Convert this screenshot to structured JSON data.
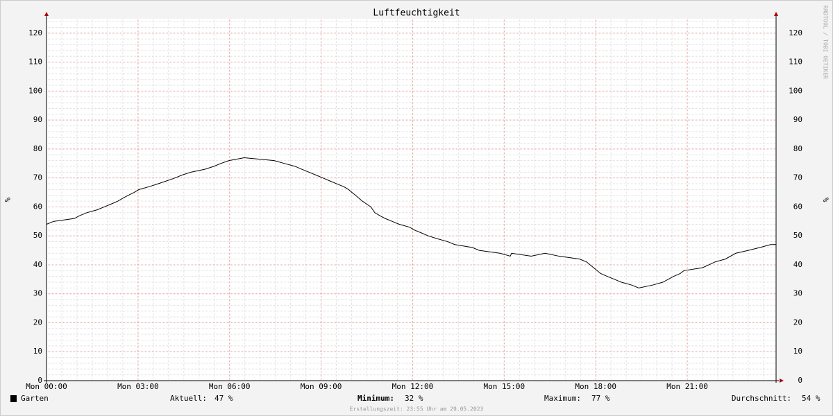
{
  "chart_data": {
    "type": "line",
    "title": "Luftfeuchtigkeit",
    "ylabel": "%",
    "watermark": "RRDTOOL / TOBI OETIKER",
    "x": [
      0,
      0.23,
      0.91,
      1.09,
      1.32,
      1.66,
      1.89,
      2.12,
      2.34,
      2.5,
      2.68,
      2.87,
      3.03,
      3.37,
      3.66,
      3.94,
      4.21,
      4.44,
      4.73,
      5.19,
      5.48,
      5.71,
      5.98,
      6.48,
      7.46,
      7.8,
      8.15,
      8.37,
      8.6,
      8.83,
      9.06,
      9.28,
      9.51,
      9.74,
      9.9,
      10.01,
      10.13,
      10.24,
      10.35,
      10.49,
      10.63,
      10.76,
      10.92,
      11.1,
      11.33,
      11.56,
      11.9,
      12.06,
      12.29,
      12.51,
      12.81,
      13.15,
      13.38,
      13.95,
      14.18,
      14.86,
      15.2,
      15.24,
      15.88,
      16.34,
      16.79,
      17.47,
      17.7,
      17.93,
      18.16,
      18.38,
      18.61,
      18.84,
      19.18,
      19.41,
      19.86,
      20.2,
      20.55,
      20.77,
      20.89,
      21.5,
      21.91,
      22.25,
      22.59,
      23.0,
      23.39,
      23.73,
      23.91
    ],
    "series": [
      {
        "name": "Garten",
        "color": "#000000",
        "values": [
          54,
          55,
          56,
          57,
          58,
          59,
          60,
          61,
          62,
          63,
          64,
          65,
          66,
          67,
          68,
          69,
          70,
          71,
          72,
          73,
          74,
          75,
          76,
          77,
          76,
          75,
          74,
          73,
          72,
          71,
          70,
          69,
          68,
          67,
          66,
          65,
          64,
          63,
          62,
          61,
          60,
          58,
          57,
          56,
          55,
          54,
          53,
          52,
          51,
          50,
          49,
          48,
          47,
          46,
          45,
          44,
          43,
          44,
          43,
          44,
          43,
          42,
          41,
          39,
          37,
          36,
          35,
          34,
          33,
          32,
          33,
          34,
          36,
          37,
          38,
          39,
          41,
          42,
          44,
          45,
          46,
          47,
          47
        ]
      }
    ],
    "xlim": [
      0,
      23.91
    ],
    "xticks": [
      {
        "value": 0,
        "label": "Mon 00:00"
      },
      {
        "value": 3,
        "label": "Mon 03:00"
      },
      {
        "value": 6,
        "label": "Mon 06:00"
      },
      {
        "value": 9,
        "label": "Mon 09:00"
      },
      {
        "value": 12,
        "label": "Mon 12:00"
      },
      {
        "value": 15,
        "label": "Mon 15:00"
      },
      {
        "value": 18,
        "label": "Mon 18:00"
      },
      {
        "value": 21,
        "label": "Mon 21:00"
      }
    ],
    "ylim": [
      0,
      125
    ],
    "yticks": [
      0,
      10,
      20,
      30,
      40,
      50,
      60,
      70,
      80,
      90,
      100,
      110,
      120
    ],
    "minor_grid": {
      "x": 0.5,
      "y": 2
    },
    "grid": true,
    "stats": [
      {
        "label": "Aktuell:",
        "value": "47 %"
      },
      {
        "label": "Minimum:",
        "value": "32 %"
      },
      {
        "label": "Maximum:",
        "value": "77 %"
      },
      {
        "label": "Durchschnitt:",
        "value": "54 %"
      }
    ],
    "footer": "Erstellungszeit: 23:55 Uhr am 29.05.2023"
  }
}
